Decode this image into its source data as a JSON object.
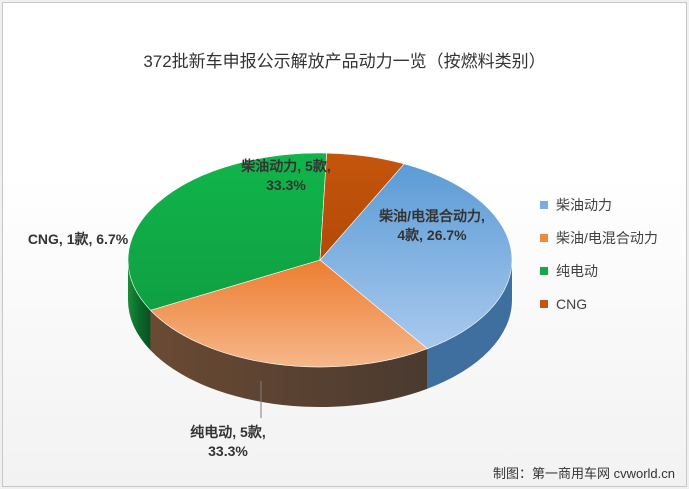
{
  "chart_data": {
    "type": "pie",
    "title": "372批新车申报公示解放产品动力一览（按燃料类别）",
    "series": [
      {
        "name": "柴油动力",
        "value": 5,
        "percent": 33.3,
        "label_line1": "柴油动力, 5款,",
        "label_line2": "33.3%",
        "color": "#7aaee0"
      },
      {
        "name": "柴油/电混合动力",
        "value": 4,
        "percent": 26.7,
        "label_line1": "柴油/电混合动力,",
        "label_line2": "4款, 26.7%",
        "color": "#f08a3c"
      },
      {
        "name": "纯电动",
        "value": 5,
        "percent": 33.3,
        "label_line1": "纯电动, 5款,",
        "label_line2": "33.3%",
        "color": "#12a84a"
      },
      {
        "name": "CNG",
        "value": 1,
        "percent": 6.7,
        "label_line1": "CNG, 1款, 6.7%",
        "label_line2": "",
        "color": "#c4550c"
      }
    ],
    "legend_position": "right",
    "style": "3d"
  },
  "credit": "制图：第一商用车网 cvworld.cn"
}
